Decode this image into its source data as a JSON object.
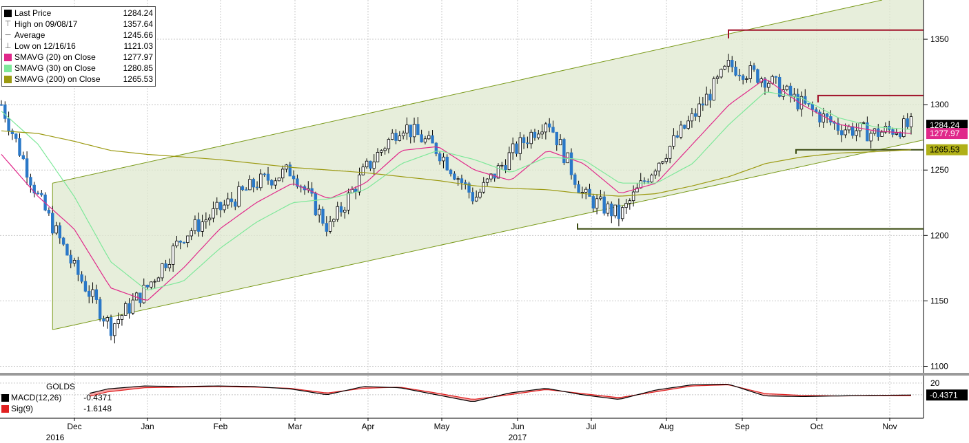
{
  "legend": {
    "items": [
      {
        "label": "Last Price",
        "value": "1284.24",
        "icon": "black-square",
        "color": "#000000"
      },
      {
        "label": "High on 09/08/17",
        "value": "1357.64",
        "icon": "high-marker",
        "color": "#555555"
      },
      {
        "label": "Average",
        "value": "1245.66",
        "icon": "average-marker",
        "color": "#888888"
      },
      {
        "label": "Low on 12/16/16",
        "value": "1121.03",
        "icon": "low-marker",
        "color": "#555555"
      },
      {
        "label": "SMAVG (20) on Close",
        "value": "1277.97",
        "icon": "pink-square",
        "color": "#e0288a"
      },
      {
        "label": "SMAVG (30) on Close",
        "value": "1280.85",
        "icon": "green-square",
        "color": "#7ee89a"
      },
      {
        "label": "SMAVG (200) on Close",
        "value": "1265.53",
        "icon": "olive-square",
        "color": "#9c9a12"
      }
    ]
  },
  "price_axis": {
    "ticks": [
      "1350",
      "1300",
      "1250",
      "1200",
      "1150",
      "1100"
    ],
    "tags": {
      "last": "1284.24",
      "sma20": "1277.97",
      "sma200": "1265.53"
    }
  },
  "month_axis": {
    "labels": [
      "Dec",
      "Jan",
      "Feb",
      "Mar",
      "Apr",
      "May",
      "Jun",
      "Jul",
      "Aug",
      "Sep",
      "Oct",
      "Nov"
    ],
    "year_labels": [
      {
        "label": "2016",
        "under": "Dec"
      },
      {
        "label": "2017",
        "under": "Jun"
      }
    ]
  },
  "macd_panel": {
    "title": "GOLDS",
    "macd_label": "MACD(12,26)",
    "macd_value": "-0.4371",
    "sig_label": "Sig(9)",
    "sig_value": "-1.6148",
    "tick": "20",
    "tag": "-0.4371",
    "colors": {
      "macd": "#000000",
      "signal": "#e02020",
      "fill": "#f08080"
    }
  },
  "chart_data": {
    "type": "line",
    "title": "GOLDS",
    "x": [
      "2016-11-01",
      "2016-11-15",
      "2016-12-01",
      "2016-12-15",
      "2017-01-01",
      "2017-01-15",
      "2017-02-01",
      "2017-02-15",
      "2017-03-01",
      "2017-03-15",
      "2017-04-01",
      "2017-04-15",
      "2017-05-01",
      "2017-05-15",
      "2017-06-01",
      "2017-06-15",
      "2017-07-01",
      "2017-07-15",
      "2017-08-01",
      "2017-08-15",
      "2017-09-01",
      "2017-09-15",
      "2017-10-01",
      "2017-10-15",
      "2017-11-01",
      "2017-11-10"
    ],
    "ylim": [
      1095,
      1380
    ],
    "series": [
      {
        "name": "Last Price",
        "values": [
          1300,
          1230,
          1175,
          1130,
          1160,
          1200,
          1220,
          1240,
          1250,
          1205,
          1250,
          1285,
          1265,
          1228,
          1262,
          1290,
          1230,
          1215,
          1255,
          1290,
          1330,
          1320,
          1300,
          1283,
          1278,
          1284
        ]
      },
      {
        "name": "SMAVG (20) on Close",
        "values": [
          1262,
          1230,
          1205,
          1160,
          1150,
          1175,
          1205,
          1225,
          1240,
          1228,
          1240,
          1265,
          1268,
          1250,
          1242,
          1265,
          1255,
          1232,
          1240,
          1270,
          1300,
          1320,
          1300,
          1285,
          1280,
          1278
        ]
      },
      {
        "name": "SMAVG (30) on Close",
        "values": [
          1295,
          1270,
          1230,
          1180,
          1158,
          1165,
          1190,
          1210,
          1225,
          1228,
          1235,
          1255,
          1265,
          1258,
          1248,
          1260,
          1258,
          1240,
          1240,
          1255,
          1285,
          1310,
          1305,
          1290,
          1283,
          1281
        ]
      },
      {
        "name": "SMAVG (200) on Close",
        "values": [
          1280,
          1278,
          1272,
          1265,
          1262,
          1260,
          1258,
          1255,
          1252,
          1250,
          1248,
          1245,
          1242,
          1238,
          1236,
          1235,
          1232,
          1230,
          1232,
          1238,
          1245,
          1255,
          1260,
          1263,
          1264,
          1265.53
        ]
      }
    ],
    "legend": "top-left",
    "grid": true,
    "channel": {
      "upper": [
        [
          1,
          1240
        ],
        [
          25,
          1395
        ]
      ],
      "lower": [
        [
          1,
          1128
        ],
        [
          25,
          1273
        ]
      ]
    },
    "levels": [
      1357,
      1307,
      1265.53,
      1205
    ],
    "macd": {
      "ylim": [
        -40,
        28
      ],
      "macd": [
        -30,
        -20,
        -5,
        10,
        15,
        14,
        15,
        14,
        10,
        0,
        14,
        12,
        0,
        -12,
        3,
        11,
        0,
        -8,
        8,
        17,
        18,
        -2,
        -3,
        -2,
        -1,
        -0.4371
      ],
      "signal": [
        -35,
        -25,
        -10,
        5,
        12,
        13,
        14,
        13,
        11,
        3,
        11,
        13,
        3,
        -8,
        0,
        9,
        2,
        -5,
        5,
        15,
        17,
        2,
        -1,
        -2,
        -1.5,
        -1.6148
      ]
    }
  }
}
